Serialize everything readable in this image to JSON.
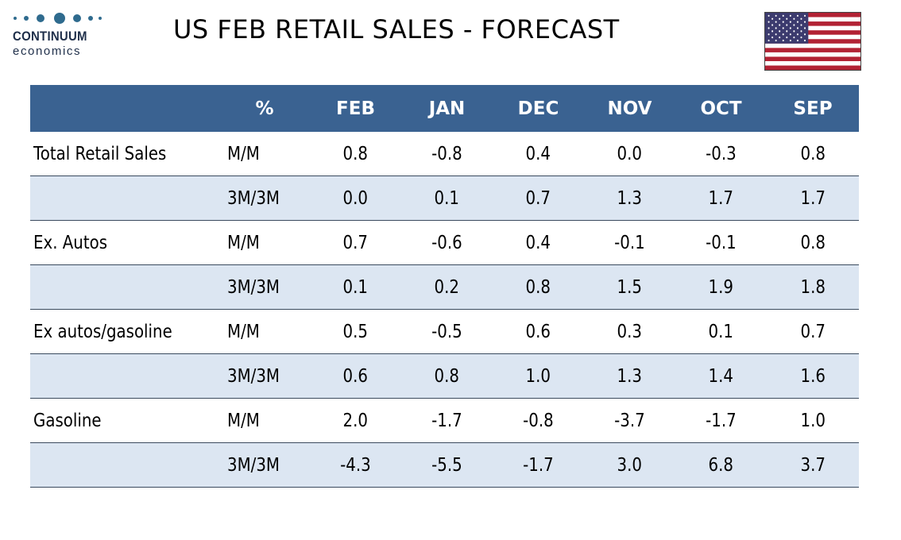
{
  "logo": {
    "main": "CONTINUUM",
    "sub": "economics"
  },
  "title": "US FEB RETAIL SALES - FORECAST",
  "flag_icon": "us-flag-icon",
  "colors": {
    "header_bg": "#3a6291",
    "alt_row_bg": "#dce6f2",
    "logo": "#2f6b8e"
  },
  "chart_data": {
    "type": "table",
    "title": "US FEB RETAIL SALES - FORECAST",
    "columns": [
      "",
      "%",
      "FEB",
      "JAN",
      "DEC",
      "NOV",
      "OCT",
      "SEP"
    ],
    "rows": [
      {
        "label": "Total Retail Sales",
        "unit": "M/M",
        "values": [
          "0.8",
          "-0.8",
          "0.4",
          "0.0",
          "-0.3",
          "0.8"
        ]
      },
      {
        "label": "",
        "unit": "3M/3M",
        "values": [
          "0.0",
          "0.1",
          "0.7",
          "1.3",
          "1.7",
          "1.7"
        ]
      },
      {
        "label": "Ex. Autos",
        "unit": "M/M",
        "values": [
          "0.7",
          "-0.6",
          "0.4",
          "-0.1",
          "-0.1",
          "0.8"
        ]
      },
      {
        "label": "",
        "unit": "3M/3M",
        "values": [
          "0.1",
          "0.2",
          "0.8",
          "1.5",
          "1.9",
          "1.8"
        ]
      },
      {
        "label": "Ex autos/gasoline",
        "unit": "M/M",
        "values": [
          "0.5",
          "-0.5",
          "0.6",
          "0.3",
          "0.1",
          "0.7"
        ]
      },
      {
        "label": "",
        "unit": "3M/3M",
        "values": [
          "0.6",
          "0.8",
          "1.0",
          "1.3",
          "1.4",
          "1.6"
        ]
      },
      {
        "label": "Gasoline",
        "unit": "M/M",
        "values": [
          "2.0",
          "-1.7",
          "-0.8",
          "-3.7",
          "-1.7",
          "1.0"
        ]
      },
      {
        "label": "",
        "unit": "3M/3M",
        "values": [
          "-4.3",
          "-5.5",
          "-1.7",
          "3.0",
          "6.8",
          "3.7"
        ]
      }
    ]
  }
}
